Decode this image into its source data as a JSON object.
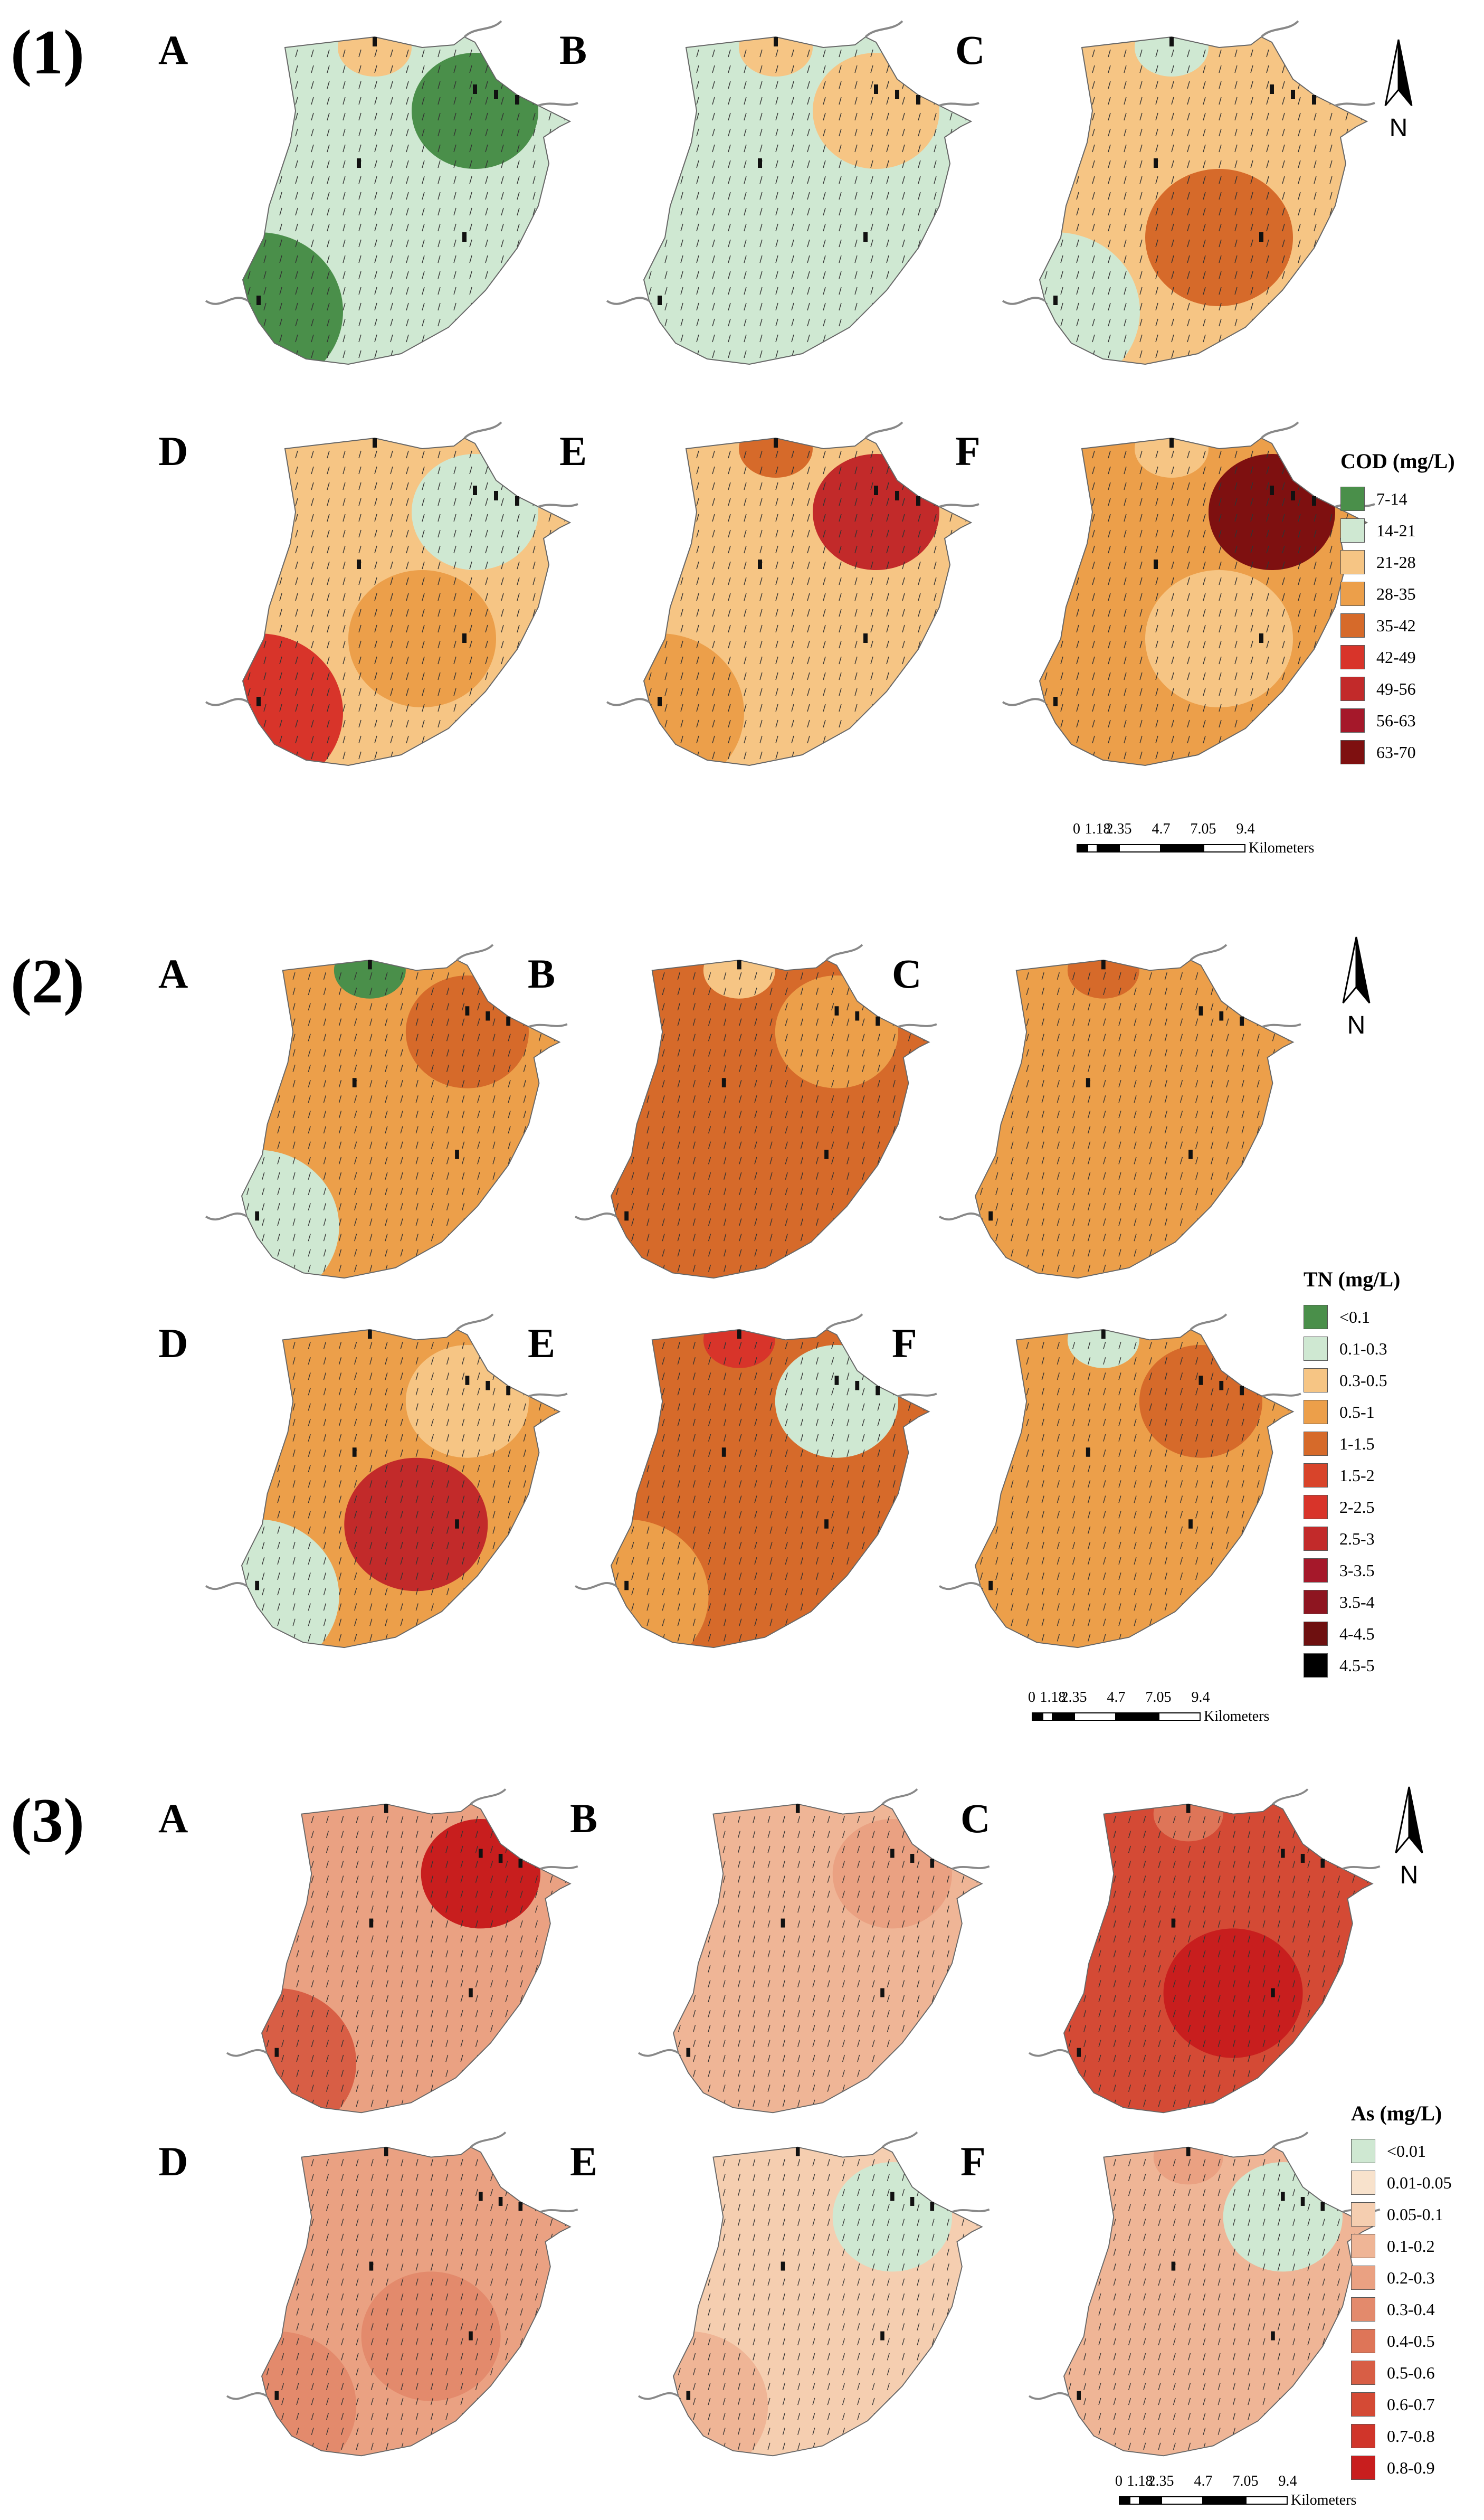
{
  "sections": [
    {
      "label": "(1)",
      "panel_labels": [
        "A",
        "B",
        "C",
        "D",
        "E",
        "F"
      ],
      "legend": {
        "title": "COD (mg/L)",
        "classes": [
          {
            "label": "7-14",
            "color": "#4a8f4a"
          },
          {
            "label": "14-21",
            "color": "#cfe8d2"
          },
          {
            "label": "21-28",
            "color": "#f6c584"
          },
          {
            "label": "28-35",
            "color": "#ec9f4a"
          },
          {
            "label": "35-42",
            "color": "#d66a2a"
          },
          {
            "label": "42-49",
            "color": "#d8342a"
          },
          {
            "label": "49-56",
            "color": "#c22a2a"
          },
          {
            "label": "56-63",
            "color": "#a5182a"
          },
          {
            "label": "63-70",
            "color": "#7e1010"
          }
        ]
      },
      "panel_fills": [
        {
          "base": "#cfe8d2",
          "blobs": [
            {
              "c": "#4a8f4a"
            },
            {
              "c": "#4a8f4a"
            },
            {
              "c": "#f6c584"
            }
          ]
        },
        {
          "base": "#cfe8d2",
          "blobs": [
            {
              "c": "#f6c584"
            },
            {
              "c": "#f6c584"
            }
          ]
        },
        {
          "base": "#f6c584",
          "blobs": [
            {
              "c": "#cfe8d2"
            },
            {
              "c": "#d66a2a"
            },
            {
              "c": "#cfe8d2"
            }
          ]
        },
        {
          "base": "#f6c584",
          "blobs": [
            {
              "c": "#ec9f4a"
            },
            {
              "c": "#d8342a"
            },
            {
              "c": "#cfe8d2"
            }
          ]
        },
        {
          "base": "#f6c584",
          "blobs": [
            {
              "c": "#ec9f4a"
            },
            {
              "c": "#c22a2a"
            },
            {
              "c": "#d66a2a"
            }
          ]
        },
        {
          "base": "#ec9f4a",
          "blobs": [
            {
              "c": "#7e1010"
            },
            {
              "c": "#f6c584"
            },
            {
              "c": "#f6c584"
            }
          ]
        }
      ]
    },
    {
      "label": "(2)",
      "panel_labels": [
        "A",
        "B",
        "C",
        "D",
        "E",
        "F"
      ],
      "legend": {
        "title": "TN (mg/L)",
        "classes": [
          {
            "label": "<0.1",
            "color": "#4a8f4a"
          },
          {
            "label": "0.1-0.3",
            "color": "#cfe8d2"
          },
          {
            "label": "0.3-0.5",
            "color": "#f6c584"
          },
          {
            "label": "0.5-1",
            "color": "#ec9f4a"
          },
          {
            "label": "1-1.5",
            "color": "#d66a2a"
          },
          {
            "label": "1.5-2",
            "color": "#d8442a"
          },
          {
            "label": "2-2.5",
            "color": "#d8342a"
          },
          {
            "label": "2.5-3",
            "color": "#c22a2a"
          },
          {
            "label": "3-3.5",
            "color": "#a5182a"
          },
          {
            "label": "3.5-4",
            "color": "#8e1520"
          },
          {
            "label": "4-4.5",
            "color": "#6e1010"
          },
          {
            "label": "4.5-5",
            "color": "#000000"
          }
        ]
      },
      "panel_fills": [
        {
          "base": "#ec9f4a",
          "blobs": [
            {
              "c": "#cfe8d2"
            },
            {
              "c": "#d66a2a"
            },
            {
              "c": "#4a8f4a"
            }
          ]
        },
        {
          "base": "#d66a2a",
          "blobs": [
            {
              "c": "#ec9f4a"
            },
            {
              "c": "#f6c584"
            }
          ]
        },
        {
          "base": "#ec9f4a",
          "blobs": [
            {
              "c": "#d66a2a"
            }
          ]
        },
        {
          "base": "#ec9f4a",
          "blobs": [
            {
              "c": "#c22a2a"
            },
            {
              "c": "#cfe8d2"
            },
            {
              "c": "#f6c584"
            }
          ]
        },
        {
          "base": "#d66a2a",
          "blobs": [
            {
              "c": "#ec9f4a"
            },
            {
              "c": "#cfe8d2"
            },
            {
              "c": "#d8342a"
            }
          ]
        },
        {
          "base": "#ec9f4a",
          "blobs": [
            {
              "c": "#d66a2a"
            },
            {
              "c": "#cfe8d2"
            }
          ]
        }
      ]
    },
    {
      "label": "(3)",
      "panel_labels": [
        "A",
        "B",
        "C",
        "D",
        "E",
        "F"
      ],
      "legend": {
        "title": "As (mg/L)",
        "classes": [
          {
            "label": "<0.01",
            "color": "#cfe8d2"
          },
          {
            "label": "0.01-0.05",
            "color": "#f8e2cc"
          },
          {
            "label": "0.05-0.1",
            "color": "#f5ceb0"
          },
          {
            "label": "0.1-0.2",
            "color": "#efb596"
          },
          {
            "label": "0.2-0.3",
            "color": "#eaa182"
          },
          {
            "label": "0.3-0.4",
            "color": "#e38a6c"
          },
          {
            "label": "0.4-0.5",
            "color": "#de7558"
          },
          {
            "label": "0.5-0.6",
            "color": "#d85e45"
          },
          {
            "label": "0.6-0.7",
            "color": "#d44a35"
          },
          {
            "label": "0.7-0.8",
            "color": "#d0352a"
          },
          {
            "label": "0.8-0.9",
            "color": "#c81e1e"
          }
        ]
      },
      "panel_fills": [
        {
          "base": "#eaa182",
          "blobs": [
            {
              "c": "#d85e45"
            },
            {
              "c": "#c81e1e"
            }
          ]
        },
        {
          "base": "#efb596",
          "blobs": [
            {
              "c": "#eaa182"
            }
          ]
        },
        {
          "base": "#d44a35",
          "blobs": [
            {
              "c": "#de7558"
            },
            {
              "c": "#c81e1e"
            }
          ]
        },
        {
          "base": "#eaa182",
          "blobs": [
            {
              "c": "#e38a6c"
            },
            {
              "c": "#e38a6c"
            }
          ]
        },
        {
          "base": "#f5ceb0",
          "blobs": [
            {
              "c": "#efb596"
            },
            {
              "c": "#cfe8d2"
            }
          ]
        },
        {
          "base": "#efb596",
          "blobs": [
            {
              "c": "#cfe8d2"
            },
            {
              "c": "#eaa182"
            }
          ]
        }
      ]
    }
  ],
  "north_letter": "N",
  "scalebar": {
    "ticks": [
      "0",
      "1.18",
      "2.35",
      "4.7",
      "7.05",
      "9.4"
    ],
    "unit": "Kilometers"
  }
}
